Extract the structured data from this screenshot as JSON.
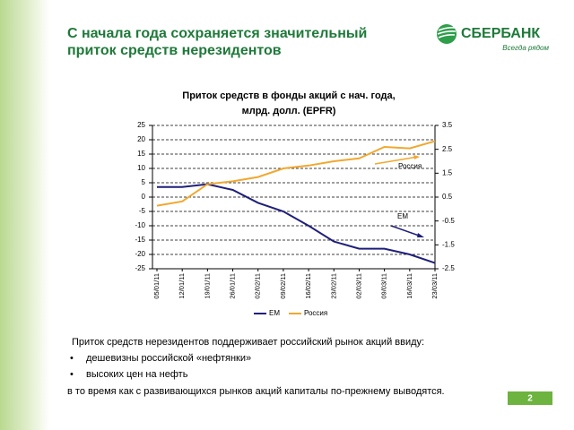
{
  "header": {
    "title": [
      "С начала года сохраняется значительный",
      "приток средств нерезидентов"
    ]
  },
  "logo": {
    "name": "СБЕРБАНК",
    "slogan": "Всегда рядом"
  },
  "chart_data": {
    "type": "line",
    "title": [
      "Приток средств в фонды акций с нач. года,",
      "млрд. долл. (EPFR)"
    ],
    "categories": [
      "05/01/11",
      "12/01/11",
      "19/01/11",
      "26/01/11",
      "02/02/11",
      "09/02/11",
      "16/02/11",
      "23/02/11",
      "02/03/11",
      "09/03/11",
      "16/03/11",
      "23/03/11"
    ],
    "series": [
      {
        "name": "EM",
        "color": "#1f1f7a",
        "values": [
          3.5,
          3.5,
          4.5,
          2.5,
          -2,
          -5,
          -10,
          -15.5,
          -18,
          -18,
          -20,
          -23
        ]
      },
      {
        "name": "Россия",
        "color": "#f0a830",
        "axis": "y2",
        "values": [
          0.14,
          0.32,
          1.04,
          1.16,
          1.34,
          1.7,
          1.82,
          2.0,
          2.12,
          2.6,
          2.54,
          2.84
        ]
      }
    ],
    "ylim": [
      -25,
      25
    ],
    "yticks": [
      -25,
      -20,
      -15,
      -10,
      -5,
      0,
      5,
      10,
      15,
      20,
      25
    ],
    "y2lim": [
      -2.5,
      3.5
    ],
    "y2ticks": [
      -2.5,
      -1.5,
      -0.5,
      0.5,
      1.5,
      2.5,
      3.5
    ],
    "grid": true,
    "legend": "bottom",
    "annotations": [
      "Россия",
      "EM"
    ]
  },
  "body": {
    "intro": "Приток средств  нерезидентов поддерживает российский рынок акций ввиду:",
    "bullets": [
      "дешевизны  российской «нефтянки»",
      "высоких цен на нефть"
    ],
    "outro": "в то время как с развивающихся  рынков акций капиталы по-прежнему выводятся."
  },
  "page_number": "2"
}
